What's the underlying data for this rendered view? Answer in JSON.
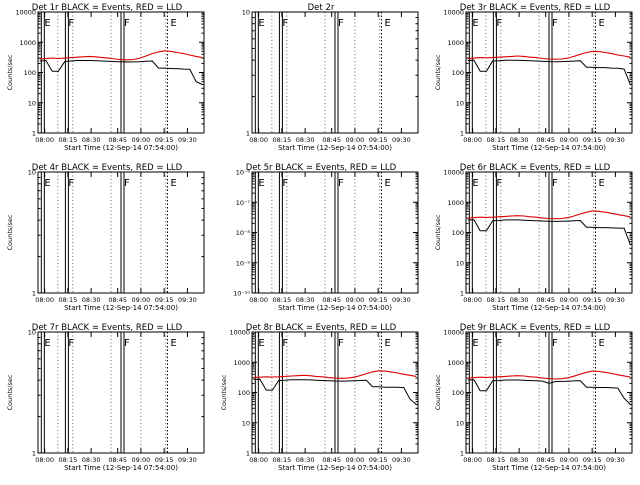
{
  "window_title": "",
  "colors": {
    "events": "#000000",
    "lld": "#dd0000",
    "axes": "#000000",
    "background": "#ffffff"
  },
  "chart_data": [
    {
      "type": "line",
      "title": "Det 1r BLACK = Events, RED = LLD",
      "ylabel": "Counts/sec",
      "xlabel": "Start Time (12-Sep-14 07:54:00)",
      "yscale": "log",
      "ylim": [
        1,
        10000
      ],
      "yticks": [
        1,
        10,
        100,
        1000,
        10000
      ],
      "yticklabels": [
        "1",
        "10",
        "100",
        "1000",
        "10000"
      ],
      "xticklabels": [
        "08:00",
        "08:15",
        "08:30",
        "08:45",
        "09:00",
        "09:15",
        "09:30"
      ],
      "flags": [
        "E",
        "F",
        "F",
        "E"
      ],
      "curves": true,
      "lld_values": [
        280,
        290,
        300,
        290,
        300,
        310,
        320,
        330,
        340,
        330,
        310,
        300,
        280,
        270,
        260,
        270,
        300,
        350,
        420,
        480,
        520,
        500,
        460,
        420,
        380,
        340,
        310
      ],
      "event_values": [
        240,
        250,
        110,
        110,
        230,
        240,
        250,
        250,
        250,
        245,
        240,
        235,
        230,
        225,
        222,
        224,
        228,
        235,
        240,
        140,
        140,
        135,
        135,
        130,
        128,
        50,
        0
      ]
    },
    {
      "type": "line",
      "title": "Det 2r",
      "ylabel": "",
      "xlabel": "Start Time (12-Sep-14 07:54:00)",
      "yscale": "log",
      "ylim": [
        1,
        10
      ],
      "yticks": [
        1,
        10
      ],
      "yticklabels": [
        "1",
        "10"
      ],
      "xticklabels": [
        "08:00",
        "08:15",
        "08:30",
        "08:45",
        "09:00",
        "09:15",
        "09:30"
      ],
      "flags": [
        "E",
        "F",
        "F",
        "E"
      ],
      "curves": false
    },
    {
      "type": "line",
      "title": "Det 3r BLACK = Events, RED = LLD",
      "ylabel": "Counts/sec",
      "xlabel": "Start Time (12-Sep-14 07:54:00)",
      "yscale": "log",
      "ylim": [
        1,
        10000
      ],
      "yticks": [
        1,
        10,
        100,
        1000,
        10000
      ],
      "yticklabels": [
        "1",
        "10",
        "100",
        "1000",
        "10000"
      ],
      "xticklabels": [
        "08:00",
        "08:15",
        "08:30",
        "08:45",
        "09:00",
        "09:15",
        "09:30"
      ],
      "flags": [
        "E",
        "F",
        "F",
        "E"
      ],
      "curves": true,
      "lld_values": [
        290,
        300,
        310,
        305,
        310,
        320,
        330,
        340,
        350,
        340,
        320,
        310,
        290,
        280,
        275,
        280,
        300,
        340,
        400,
        460,
        500,
        490,
        460,
        420,
        380,
        350,
        320
      ],
      "event_values": [
        250,
        255,
        110,
        110,
        240,
        245,
        255,
        255,
        255,
        250,
        245,
        240,
        235,
        230,
        228,
        230,
        232,
        238,
        245,
        150,
        150,
        145,
        145,
        140,
        138,
        130,
        0
      ]
    },
    {
      "type": "line",
      "title": "Det 4r BLACK = Events, RED = LLD",
      "ylabel": "Counts/sec",
      "xlabel": "Start Time (12-Sep-14 07:54:00)",
      "yscale": "log",
      "ylim": [
        1,
        10
      ],
      "yticks": [
        1,
        10
      ],
      "yticklabels": [
        "1",
        "10"
      ],
      "xticklabels": [
        "08:00",
        "08:15",
        "08:30",
        "08:45",
        "09:00",
        "09:15",
        "09:30"
      ],
      "flags": [
        "E",
        "F",
        "F",
        "E"
      ],
      "curves": false
    },
    {
      "type": "line",
      "title": "Det 5r BLACK = Events, RED = LLD",
      "ylabel": "",
      "xlabel": "Start Time (12-Sep-14 07:54:00)",
      "yscale": "log",
      "ylim": [
        1e-10,
        1e-06
      ],
      "yticks": [
        1e-10,
        1e-09,
        1e-08,
        1e-07,
        1e-06
      ],
      "yticklabels": [
        "10⁻¹⁰",
        "10⁻⁹",
        "10⁻⁸",
        "10⁻⁷",
        "10⁻⁶"
      ],
      "xticklabels": [
        "08:00",
        "08:15",
        "08:30",
        "08:45",
        "09:00",
        "09:15",
        "09:30"
      ],
      "flags": [
        "E",
        "F",
        "F",
        "E"
      ],
      "curves": false
    },
    {
      "type": "line",
      "title": "Det 6r BLACK = Events, RED = LLD",
      "ylabel": "Counts/sec",
      "xlabel": "Start Time (12-Sep-14 07:54:00)",
      "yscale": "log",
      "ylim": [
        1,
        10000
      ],
      "yticks": [
        1,
        10,
        100,
        1000,
        10000
      ],
      "yticklabels": [
        "1",
        "10",
        "100",
        "1000",
        "10000"
      ],
      "xticklabels": [
        "08:00",
        "08:15",
        "08:30",
        "08:45",
        "09:00",
        "09:15",
        "09:30"
      ],
      "flags": [
        "E",
        "F",
        "F",
        "E"
      ],
      "curves": true,
      "lld_values": [
        300,
        310,
        320,
        315,
        320,
        330,
        340,
        350,
        360,
        350,
        330,
        320,
        300,
        290,
        285,
        290,
        310,
        350,
        410,
        470,
        520,
        500,
        470,
        430,
        390,
        360,
        330
      ],
      "event_values": [
        260,
        265,
        115,
        115,
        245,
        250,
        260,
        260,
        260,
        255,
        250,
        245,
        240,
        235,
        232,
        234,
        238,
        244,
        250,
        150,
        150,
        145,
        145,
        142,
        140,
        138,
        0
      ]
    },
    {
      "type": "line",
      "title": "Det 7r BLACK = Events, RED = LLD",
      "ylabel": "Counts/sec",
      "xlabel": "Start Time (12-Sep-14 07:54:00)",
      "yscale": "log",
      "ylim": [
        1,
        10
      ],
      "yticks": [
        1,
        10
      ],
      "yticklabels": [
        "1",
        "10"
      ],
      "xticklabels": [
        "08:00",
        "08:15",
        "08:30",
        "08:45",
        "09:00",
        "09:15",
        "09:30"
      ],
      "flags": [
        "E",
        "F",
        "F",
        "E"
      ],
      "curves": false
    },
    {
      "type": "line",
      "title": "Det 8r BLACK = Events, RED = LLD",
      "ylabel": "Counts/sec",
      "xlabel": "Start Time (12-Sep-14 07:54:00)",
      "yscale": "log",
      "ylim": [
        1,
        10000
      ],
      "yticks": [
        1,
        10,
        100,
        1000,
        10000
      ],
      "yticklabels": [
        "1",
        "10",
        "100",
        "1000",
        "10000"
      ],
      "xticklabels": [
        "08:00",
        "08:15",
        "08:30",
        "08:45",
        "09:00",
        "09:15",
        "09:30"
      ],
      "flags": [
        "E",
        "F",
        "F",
        "E"
      ],
      "curves": true,
      "lld_values": [
        310,
        320,
        330,
        325,
        330,
        340,
        350,
        360,
        370,
        360,
        340,
        330,
        310,
        300,
        295,
        300,
        320,
        360,
        420,
        480,
        520,
        510,
        480,
        440,
        400,
        370,
        340
      ],
      "event_values": [
        270,
        275,
        120,
        120,
        250,
        255,
        265,
        265,
        265,
        260,
        255,
        250,
        245,
        240,
        238,
        240,
        244,
        250,
        255,
        155,
        155,
        150,
        150,
        148,
        145,
        60,
        0
      ]
    },
    {
      "type": "line",
      "title": "Det 9r BLACK = Events, RED = LLD",
      "ylabel": "Counts/sec",
      "xlabel": "Start Time (12-Sep-14 07:54:00)",
      "yscale": "log",
      "ylim": [
        1,
        10000
      ],
      "yticks": [
        1,
        10,
        100,
        1000,
        10000
      ],
      "yticklabels": [
        "1",
        "10",
        "100",
        "1000",
        "10000"
      ],
      "xticklabels": [
        "08:00",
        "08:15",
        "08:30",
        "08:45",
        "09:00",
        "09:15",
        "09:30"
      ],
      "flags": [
        "E",
        "F",
        "F",
        "E"
      ],
      "curves": true,
      "lld_values": [
        300,
        310,
        320,
        315,
        320,
        330,
        340,
        350,
        360,
        350,
        330,
        320,
        300,
        290,
        280,
        285,
        305,
        345,
        405,
        465,
        510,
        495,
        465,
        425,
        385,
        355,
        325
      ],
      "event_values": [
        260,
        265,
        115,
        115,
        245,
        250,
        258,
        258,
        258,
        254,
        248,
        244,
        238,
        200,
        230,
        232,
        236,
        242,
        248,
        150,
        150,
        146,
        146,
        143,
        140,
        65,
        0
      ]
    }
  ]
}
